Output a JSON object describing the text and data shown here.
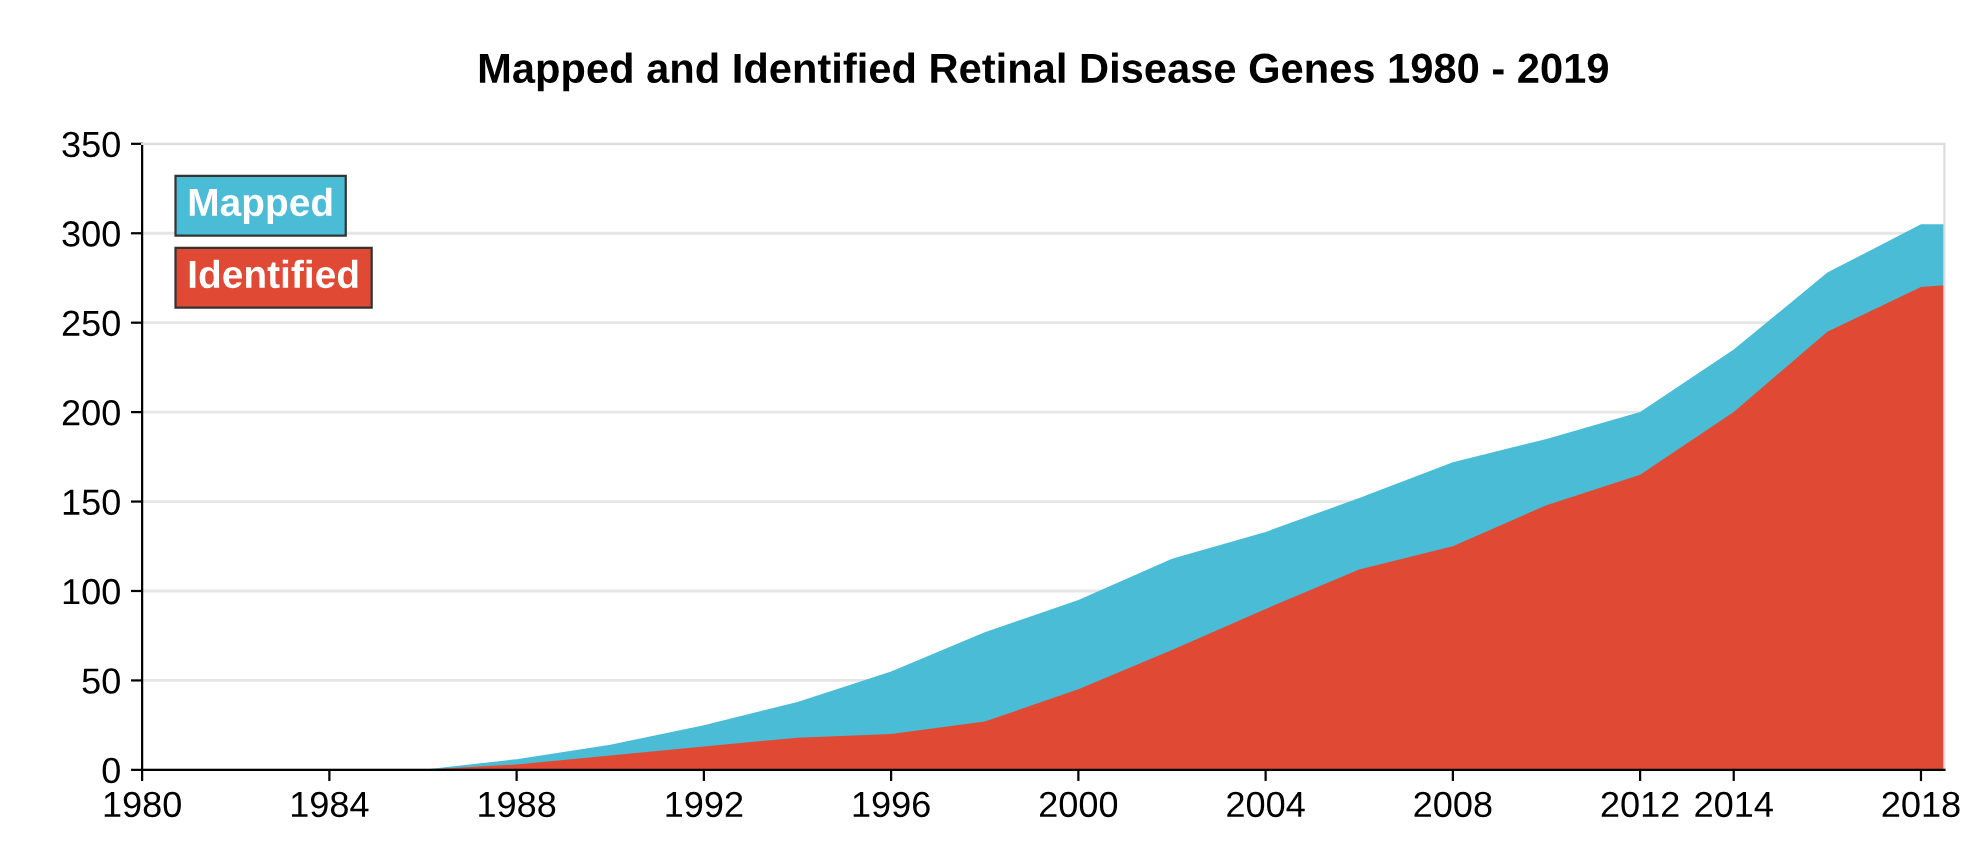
{
  "chart_data": {
    "type": "area",
    "title": "Mapped and Identified Retinal Disease Genes 1980 - 2019",
    "x": [
      1980,
      1986,
      1988,
      1990,
      1992,
      1994,
      1996,
      1998,
      2000,
      2002,
      2004,
      2006,
      2008,
      2010,
      2012,
      2014,
      2016,
      2018,
      2018.5
    ],
    "series": [
      {
        "name": "Mapped",
        "color": "#4bbcd6",
        "values": [
          0,
          0,
          6,
          14,
          25,
          38,
          55,
          77,
          95,
          118,
          133,
          152,
          172,
          185,
          200,
          235,
          278,
          305,
          305
        ]
      },
      {
        "name": "Identified",
        "color": "#e04a34",
        "values": [
          0,
          0,
          3,
          8,
          13,
          18,
          20,
          27,
          45,
          67,
          90,
          112,
          125,
          148,
          165,
          200,
          245,
          270,
          271
        ]
      }
    ],
    "xlim": [
      1980,
      2018.5
    ],
    "xticks": [
      1980,
      1984,
      1988,
      1992,
      1996,
      2000,
      2004,
      2008,
      2012,
      2014,
      2018
    ],
    "ylim": [
      0,
      350
    ],
    "yticks": [
      0,
      50,
      100,
      150,
      200,
      250,
      300,
      350
    ],
    "grid": "y",
    "legend": "top left"
  }
}
